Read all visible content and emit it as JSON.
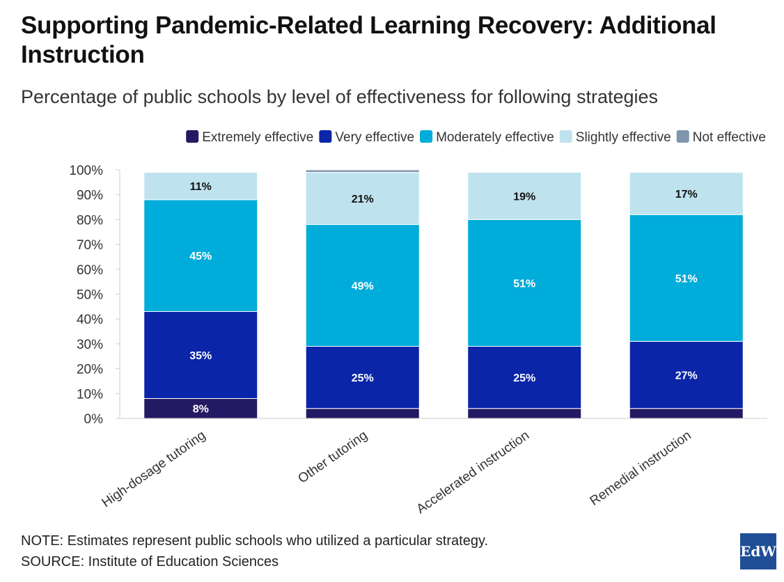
{
  "title": "Supporting Pandemic-Related Learning Recovery: Additional Instruction",
  "subtitle": "Percentage of public schools by level of effectiveness for following strategies",
  "note": "NOTE: Estimates represent public schools who utilized a particular strategy.",
  "source": "SOURCE: Institute of Education Sciences",
  "logo_text": "EdW",
  "colors": {
    "Extremely effective": "#241a63",
    "Very effective": "#0a25a8",
    "Moderately effective": "#00acd9",
    "Slightly effective": "#bfe3ee",
    "Not effective": "#7f97ad"
  },
  "chart_data": {
    "type": "bar",
    "stacked": true,
    "categories": [
      "High-dosage tutoring",
      "Other tutoring",
      "Accelerated instruction",
      "Remedial instruction"
    ],
    "series": [
      {
        "name": "Extremely effective",
        "values": [
          8,
          4,
          4,
          4
        ]
      },
      {
        "name": "Very effective",
        "values": [
          35,
          25,
          25,
          27
        ]
      },
      {
        "name": "Moderately effective",
        "values": [
          45,
          49,
          51,
          51
        ]
      },
      {
        "name": "Slightly effective",
        "values": [
          11,
          21,
          19,
          17
        ]
      },
      {
        "name": "Not effective",
        "values": [
          0,
          1,
          0,
          0
        ]
      }
    ],
    "data_labels": [
      [
        "8%",
        "35%",
        "45%",
        "11%",
        ""
      ],
      [
        "",
        "25%",
        "49%",
        "21%",
        ""
      ],
      [
        "",
        "25%",
        "51%",
        "19%",
        ""
      ],
      [
        "",
        "27%",
        "51%",
        "17%",
        ""
      ]
    ],
    "yticks": [
      "0%",
      "10%",
      "20%",
      "30%",
      "40%",
      "50%",
      "60%",
      "70%",
      "80%",
      "90%",
      "100%"
    ],
    "ylim": [
      0,
      100
    ],
    "legend_position": "top-right"
  }
}
